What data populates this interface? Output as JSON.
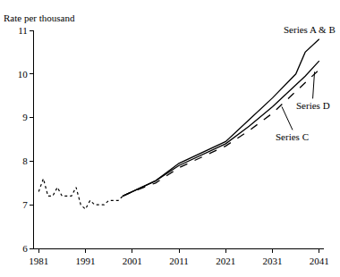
{
  "chart_data": {
    "type": "line",
    "ylabel": "Rate per thousand",
    "x": [
      1981,
      1982,
      1983,
      1984,
      1985,
      1986,
      1987,
      1988,
      1989,
      1990,
      1991,
      1992,
      1993,
      1994,
      1995,
      1996,
      1997,
      1998,
      1999,
      2001,
      2006,
      2011,
      2016,
      2021,
      2026,
      2031,
      2036,
      2038,
      2041
    ],
    "series": [
      {
        "color": "#000000",
        "line_style": "dot",
        "values": [
          7.3,
          7.6,
          7.2,
          7.2,
          7.4,
          7.2,
          7.2,
          7.2,
          7.4,
          7.0,
          6.9,
          7.1,
          7.0,
          7.0,
          7.0,
          7.1,
          7.1,
          7.1,
          7.2,
          null,
          null,
          null,
          null,
          null,
          null,
          null,
          null,
          null,
          null
        ]
      },
      {
        "name": "Series A & B",
        "color": "#000000",
        "line_style": "solid",
        "values": [
          null,
          null,
          null,
          null,
          null,
          null,
          null,
          null,
          null,
          null,
          null,
          null,
          null,
          null,
          null,
          null,
          null,
          null,
          7.2,
          7.3,
          7.55,
          7.95,
          8.2,
          8.45,
          8.95,
          9.45,
          10.0,
          10.5,
          10.8
        ]
      },
      {
        "name": "Series C",
        "color": "#000000",
        "line_style": "dash",
        "values": [
          null,
          null,
          null,
          null,
          null,
          null,
          null,
          null,
          null,
          null,
          null,
          null,
          null,
          null,
          null,
          null,
          null,
          null,
          7.2,
          7.3,
          7.5,
          7.85,
          8.1,
          8.35,
          8.7,
          9.1,
          9.6,
          9.8,
          10.1
        ]
      },
      {
        "name": "Series D",
        "color": "#000000",
        "line_style": "solid",
        "values": [
          null,
          null,
          null,
          null,
          null,
          null,
          null,
          null,
          null,
          null,
          null,
          null,
          null,
          null,
          null,
          null,
          null,
          null,
          7.2,
          7.3,
          7.55,
          7.9,
          8.15,
          8.4,
          8.8,
          9.25,
          9.75,
          9.95,
          10.3
        ]
      }
    ],
    "xlim": [
      1980,
      2042
    ],
    "xticks": [
      1981,
      1991,
      2001,
      2011,
      2021,
      2031,
      2041
    ],
    "ylim": [
      6,
      11
    ],
    "yticks": [
      6,
      7,
      8,
      9,
      10,
      11
    ],
    "grid": false
  }
}
